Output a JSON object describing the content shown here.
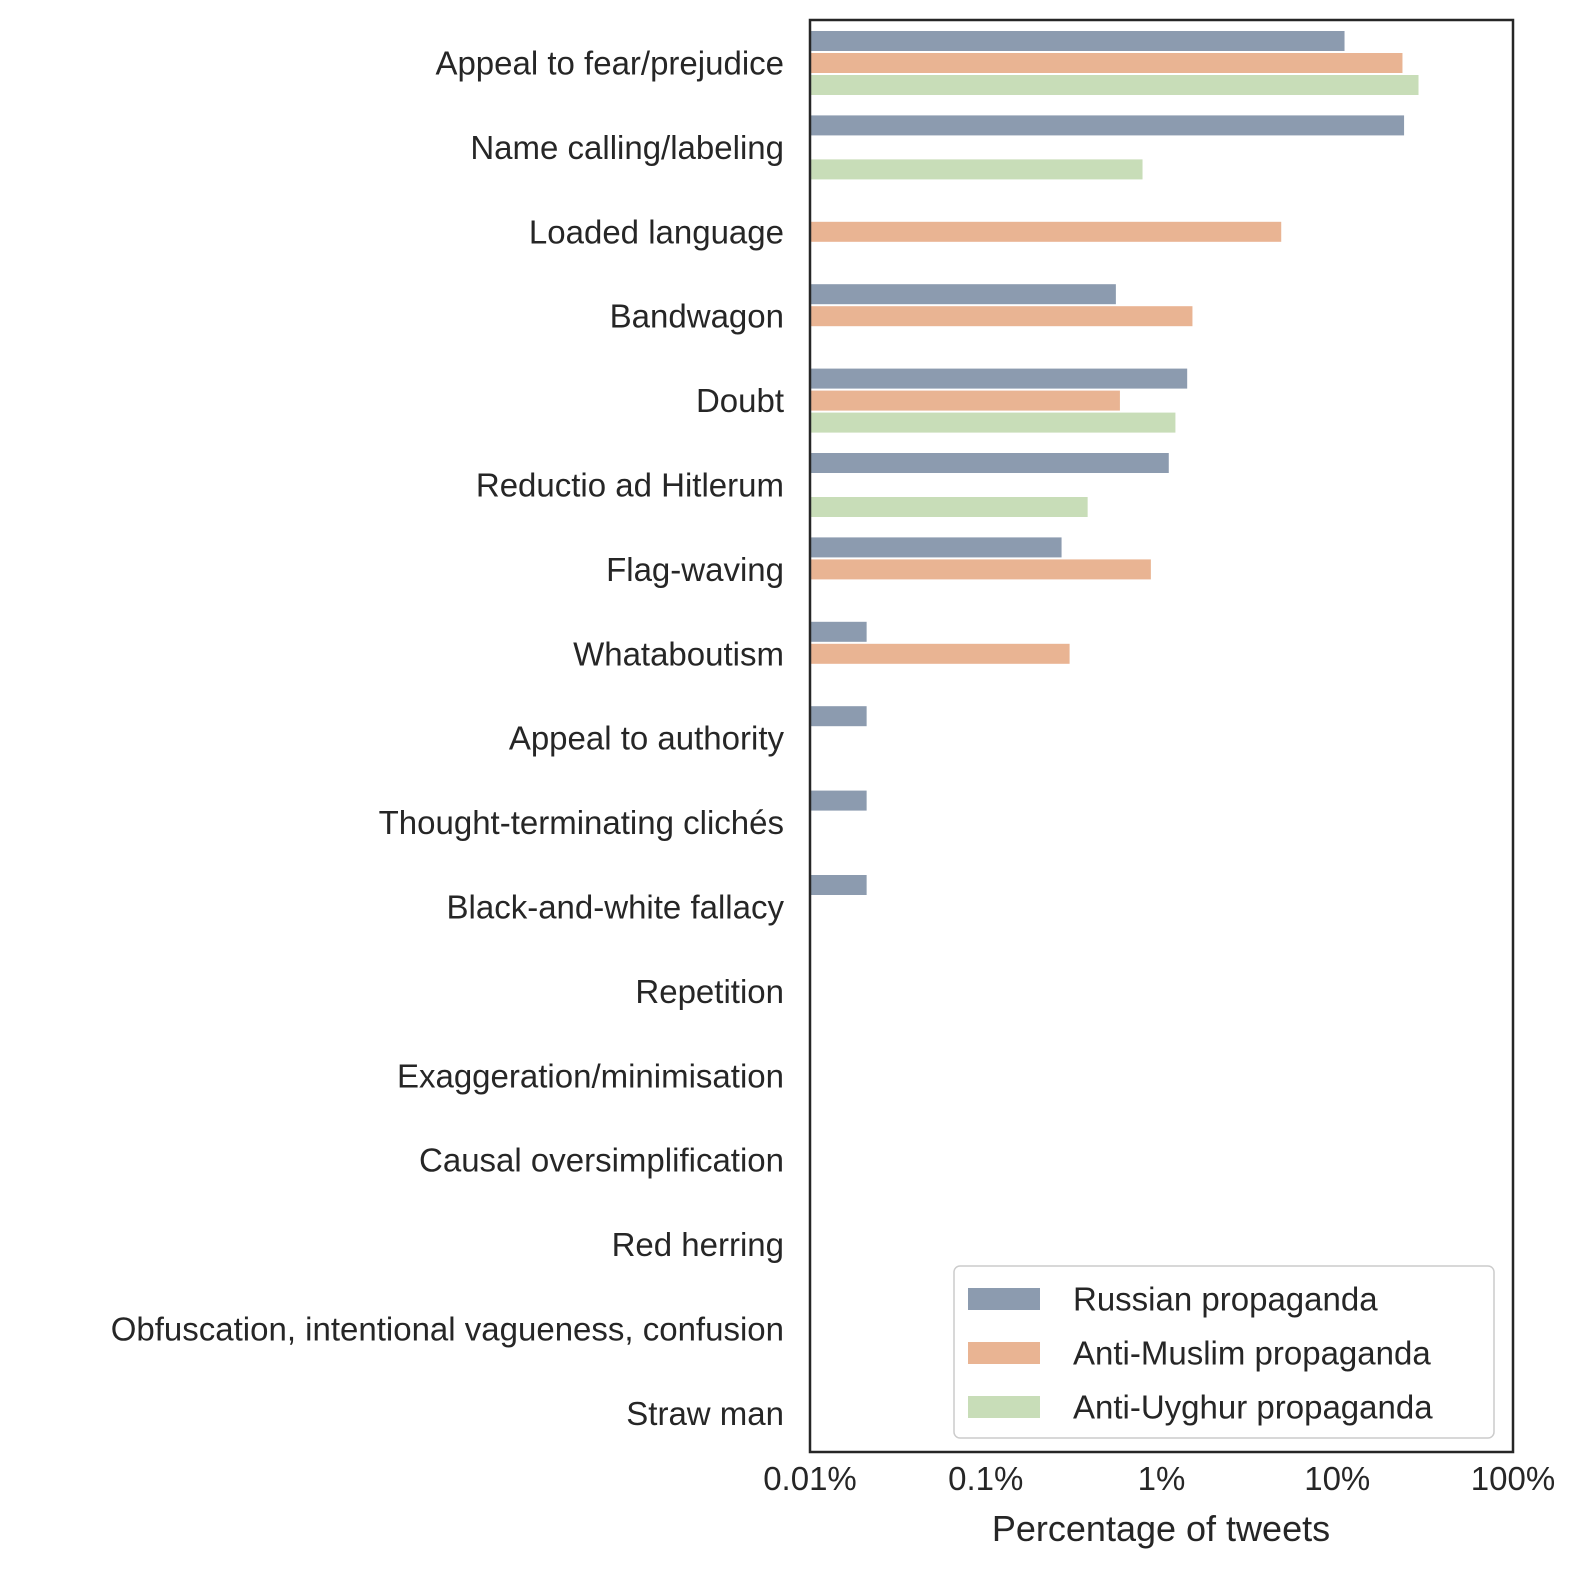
{
  "chart_data": {
    "type": "bar",
    "orientation": "horizontal",
    "xscale": "log",
    "xlim": [
      0.01,
      100
    ],
    "xlabel": "Percentage of tweets",
    "ylabel": "",
    "title": "",
    "xticks": [
      0.01,
      0.1,
      1,
      10,
      100
    ],
    "xtick_labels": [
      "0.01%",
      "0.1%",
      "1%",
      "10%",
      "100%"
    ],
    "categories": [
      "Appeal to fear/prejudice",
      "Name calling/labeling",
      "Loaded language",
      "Bandwagon",
      "Doubt",
      "Reductio ad Hitlerum",
      "Flag-waving",
      "Whataboutism",
      "Appeal to authority",
      "Thought-terminating clichés",
      "Black-and-white fallacy",
      "Repetition",
      "Exaggeration/minimisation",
      "Causal oversimplification",
      "Red herring",
      "Obfuscation, intentional vagueness, confusion",
      "Straw man"
    ],
    "series": [
      {
        "name": "Russian propaganda",
        "color": "#8c9baf",
        "values": [
          11,
          24,
          null,
          0.55,
          1.4,
          1.1,
          0.27,
          0.021,
          0.021,
          0.021,
          0.021,
          null,
          null,
          null,
          null,
          null,
          null
        ]
      },
      {
        "name": "Anti-Muslim propaganda",
        "color": "#e9b493",
        "values": [
          23.5,
          null,
          4.8,
          1.5,
          0.58,
          null,
          0.87,
          0.3,
          null,
          null,
          null,
          null,
          null,
          null,
          null,
          null,
          null
        ]
      },
      {
        "name": "Anti-Uyghur propaganda",
        "color": "#c8ddb8",
        "values": [
          29,
          0.78,
          null,
          null,
          1.2,
          0.38,
          null,
          null,
          null,
          null,
          null,
          null,
          null,
          null,
          null,
          null,
          null
        ]
      }
    ],
    "legend_position": "lower-right",
    "grid": false
  }
}
